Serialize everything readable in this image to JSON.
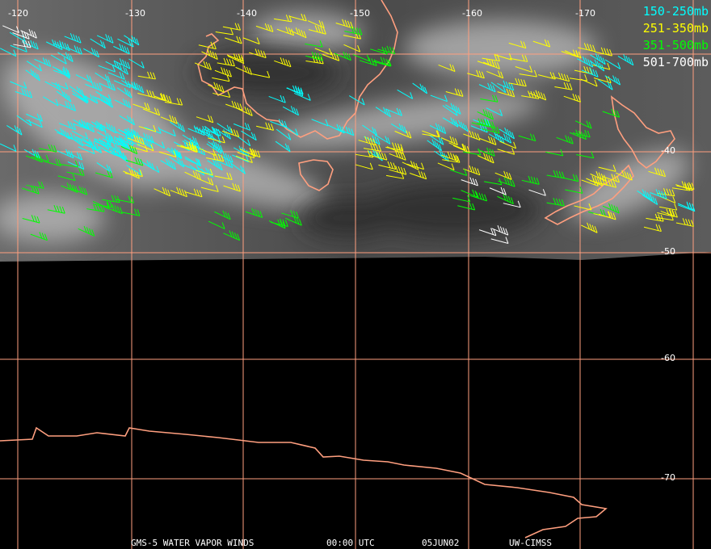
{
  "map": {
    "longitude_labels": [
      "-120",
      "-130",
      "-140",
      "-150",
      "-160",
      "-170"
    ],
    "latitude_labels": [
      "-40",
      "-50",
      "-60",
      "-70"
    ]
  },
  "legend": [
    {
      "label": "150-250mb",
      "color": "#00ffff"
    },
    {
      "label": "251-350mb",
      "color": "#ffff00"
    },
    {
      "label": "351-500mb",
      "color": "#00ff00"
    },
    {
      "label": "501-700mb",
      "color": "#ffffff"
    }
  ],
  "footer": [
    "GMS-5 WATER VAPOR WINDS",
    "00:00 UTC",
    "05JUN02",
    "UW-CIMSS"
  ]
}
